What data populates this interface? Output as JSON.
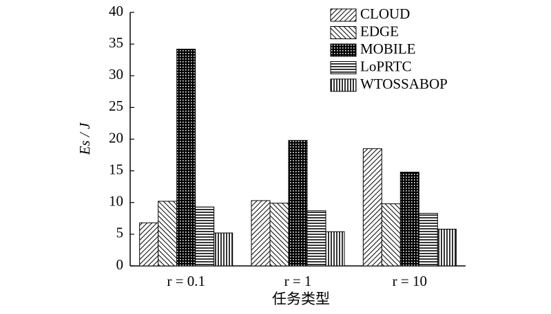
{
  "chart_data": {
    "type": "bar",
    "categories": [
      "r = 0.1",
      "r = 1",
      "r = 10"
    ],
    "xlabel": "任务类型",
    "ylabel": "Es / J",
    "ylim": [
      0,
      40
    ],
    "yticks": [
      0,
      5,
      10,
      15,
      20,
      25,
      30,
      35,
      40
    ],
    "legend": "upper right",
    "series": [
      {
        "name": "CLOUD",
        "pattern": "hatch-fwd",
        "values": [
          6.8,
          10.3,
          18.5
        ]
      },
      {
        "name": "EDGE",
        "pattern": "hatch-back",
        "values": [
          10.2,
          9.9,
          9.8
        ]
      },
      {
        "name": "MOBILE",
        "pattern": "cross",
        "values": [
          34.2,
          19.8,
          14.8
        ]
      },
      {
        "name": "LoPRTC",
        "pattern": "horiz",
        "values": [
          9.3,
          8.7,
          8.3
        ]
      },
      {
        "name": "WTOSSABOP",
        "pattern": "vert",
        "values": [
          5.2,
          5.4,
          5.8
        ]
      }
    ]
  }
}
